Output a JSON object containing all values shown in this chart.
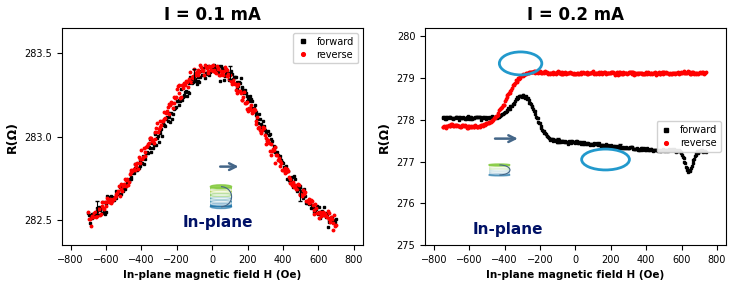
{
  "title1": "I = 0.1 mA",
  "title2": "I = 0.2 mA",
  "xlabel": "In-plane magnetic field H (Oe)",
  "ylabel1": "R(Ω)",
  "ylabel2": "R(Ω)",
  "inplane_label": "In-plane",
  "legend_forward": "forward",
  "legend_reverse": "reverse",
  "xlim": [
    -850,
    850
  ],
  "xticks": [
    -800,
    -600,
    -400,
    -200,
    0,
    200,
    400,
    600,
    800
  ],
  "ylim1": [
    282.35,
    283.65
  ],
  "yticks1": [
    282.5,
    283.0,
    283.5
  ],
  "ylim2": [
    275.0,
    280.2
  ],
  "yticks2": [
    275,
    276,
    277,
    278,
    279,
    280
  ],
  "forward_color": "black",
  "reverse_color": "red",
  "circle_color": "#2299CC"
}
